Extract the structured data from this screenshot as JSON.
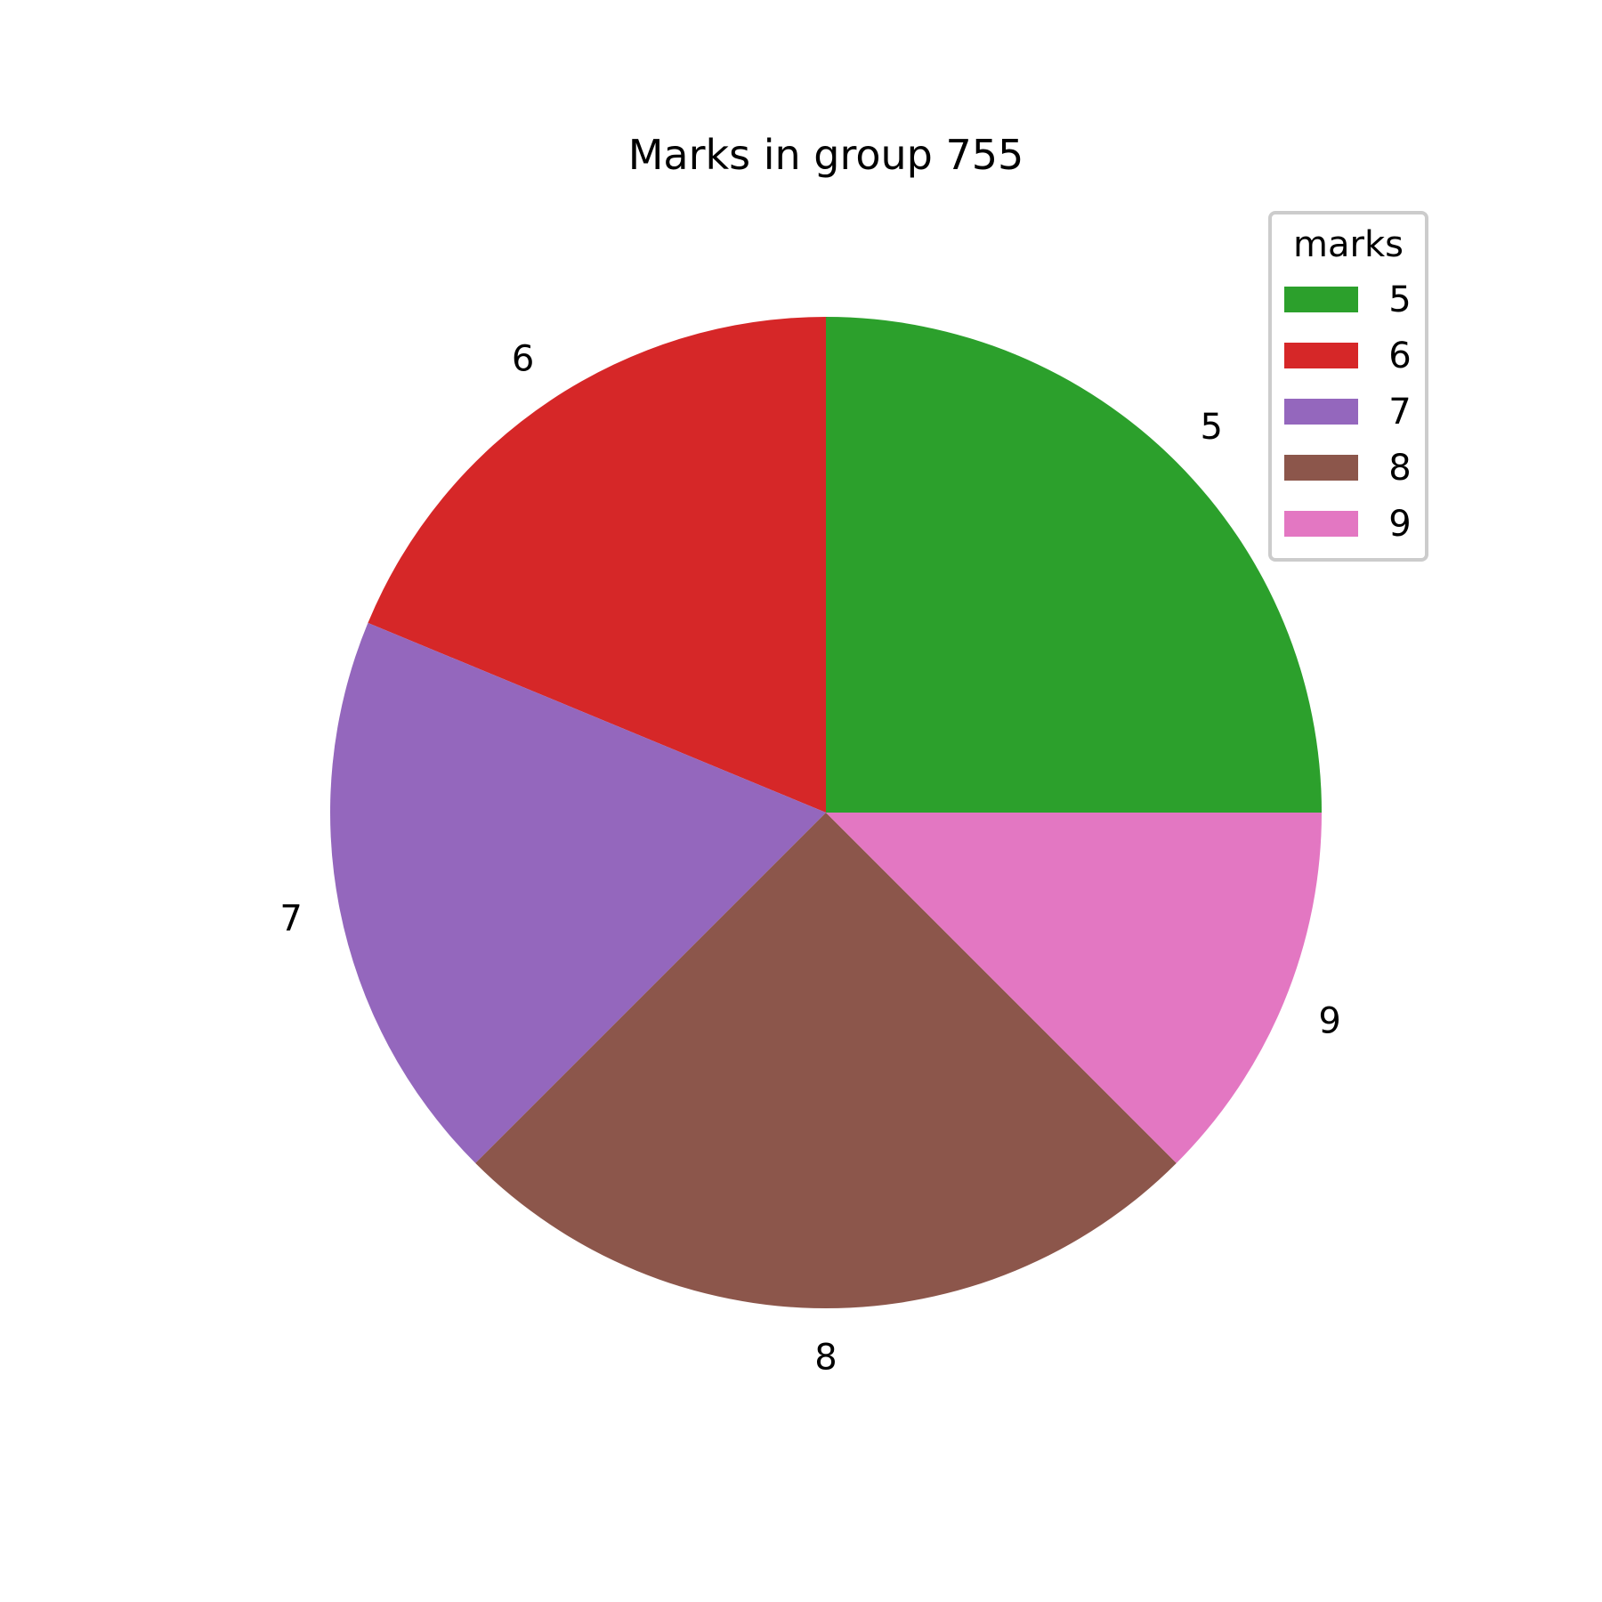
{
  "chart_data": {
    "type": "pie",
    "title": "Marks in group 755",
    "categories": [
      "5",
      "6",
      "7",
      "8",
      "9"
    ],
    "values": [
      25,
      18.75,
      18.75,
      25,
      12.5
    ],
    "colors": [
      "#2ca02c",
      "#d62728",
      "#9467bd",
      "#8c564b",
      "#e377c2"
    ],
    "start_angle_deg": 0,
    "direction": "counterclockwise",
    "legend": {
      "title": "marks",
      "placement": "top-right",
      "entries": [
        "5",
        "6",
        "7",
        "8",
        "9"
      ]
    }
  }
}
